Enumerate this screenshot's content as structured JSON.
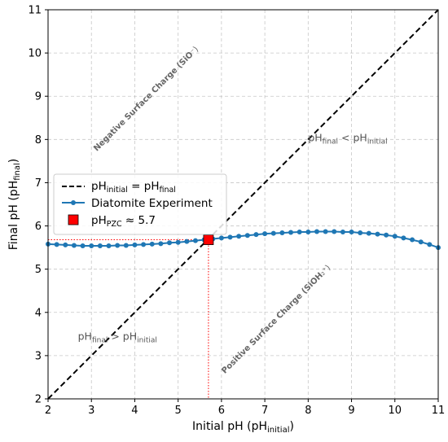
{
  "chart_data": {
    "type": "line",
    "xlabel": {
      "base": "Initial pH (pH",
      "sub": "initial",
      "tail": ")"
    },
    "ylabel": {
      "base": "Final pH (pH",
      "sub": "final",
      "tail": ")"
    },
    "xlim": [
      2,
      11
    ],
    "ylim": [
      2,
      11
    ],
    "xticks": [
      2,
      3,
      4,
      5,
      6,
      7,
      8,
      9,
      10,
      11
    ],
    "yticks": [
      2,
      3,
      4,
      5,
      6,
      7,
      8,
      9,
      10,
      11
    ],
    "grid": true,
    "legend_position": "center-left",
    "series": [
      {
        "name": "Diatomite Experiment",
        "color": "#1f77b4",
        "x": [
          2.0,
          2.2,
          2.4,
          2.6,
          2.8,
          3.0,
          3.2,
          3.4,
          3.6,
          3.8,
          4.0,
          4.2,
          4.4,
          4.6,
          4.8,
          5.0,
          5.2,
          5.4,
          5.6,
          5.8,
          6.0,
          6.2,
          6.4,
          6.6,
          6.8,
          7.0,
          7.2,
          7.4,
          7.6,
          7.8,
          8.0,
          8.2,
          8.4,
          8.6,
          8.8,
          9.0,
          9.2,
          9.4,
          9.6,
          9.8,
          10.0,
          10.2,
          10.4,
          10.6,
          10.8,
          11.0
        ],
        "y": [
          5.58,
          5.57,
          5.56,
          5.55,
          5.54,
          5.54,
          5.54,
          5.54,
          5.55,
          5.55,
          5.56,
          5.57,
          5.58,
          5.59,
          5.61,
          5.62,
          5.64,
          5.66,
          5.68,
          5.7,
          5.72,
          5.74,
          5.76,
          5.78,
          5.8,
          5.82,
          5.83,
          5.84,
          5.85,
          5.86,
          5.86,
          5.87,
          5.87,
          5.87,
          5.86,
          5.86,
          5.84,
          5.83,
          5.81,
          5.79,
          5.76,
          5.72,
          5.68,
          5.63,
          5.57,
          5.5
        ]
      }
    ],
    "reference_line": {
      "name_parts": [
        "pH",
        "initial",
        " = pH",
        "final"
      ],
      "x": [
        2,
        11
      ],
      "y": [
        2,
        11
      ],
      "color": "#000000",
      "style": "dashed"
    },
    "pzc_point": {
      "x": 5.7,
      "y": 5.68,
      "color": "#ff0000",
      "label_parts": [
        "pH",
        "PZC",
        " ≈ 5.7"
      ]
    },
    "annotations": {
      "negative_region": {
        "text": "Negative Surface Charge (SiO",
        "suffix": "⁻)",
        "x": 4.3,
        "y": 8.9
      },
      "positive_region": {
        "text": "Positive Surface Charge (SiOH",
        "suffix": "₂⁺)",
        "x": 7.3,
        "y": 3.8
      },
      "above": {
        "parts": [
          "pH",
          "final",
          " < pH",
          "initial"
        ],
        "x": 8.0,
        "y": 8.0
      },
      "below": {
        "parts": [
          "pH",
          "final",
          " > pH",
          "initial"
        ],
        "x": 2.5,
        "y": 3.4
      }
    }
  }
}
